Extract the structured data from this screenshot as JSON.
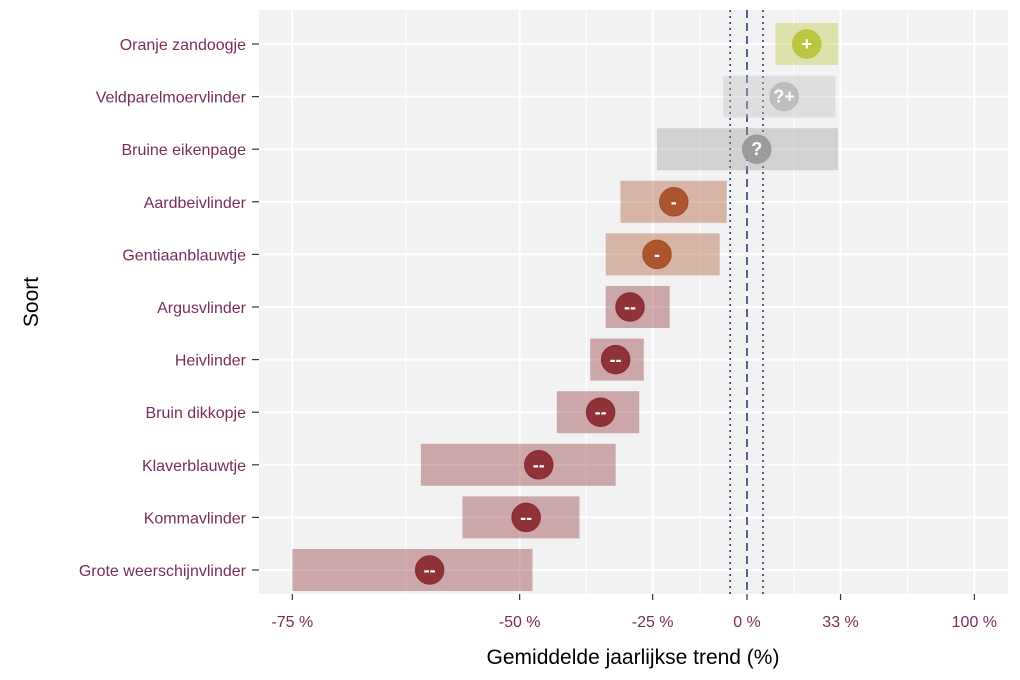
{
  "chart_data": {
    "type": "forest",
    "xlabel": "Gemiddelde jaarlijkse trend (%)",
    "ylabel": "Soort",
    "x_scale": "log-ratio",
    "xticks": [
      {
        "value": -75,
        "label": "-75 %"
      },
      {
        "value": -50,
        "label": "-50 %"
      },
      {
        "value": -25,
        "label": "-25 %"
      },
      {
        "value": 0,
        "label": "0 %"
      },
      {
        "value": 33,
        "label": "33 %"
      },
      {
        "value": 100,
        "label": "100 %"
      }
    ],
    "reference_lines": {
      "dashed": 0,
      "dotted": [
        -5,
        5
      ]
    },
    "grid": true,
    "colors": {
      "panel_bg": "#f2f2f2",
      "grid": "#ffffff",
      "category_text": "#7b2d5a",
      "ref_line": "#1f3f7a",
      "strong_decline": "#8b2c33",
      "moderate_decline": "#a9502a",
      "uncertain": "#9a9a9a",
      "uncertain_light": "#bcbcbc",
      "increase": "#b8c43a"
    },
    "series": [
      {
        "species": "Oranje zandoogje",
        "trend": 20,
        "lower": 9,
        "upper": 32,
        "marker": "+",
        "class": "increase"
      },
      {
        "species": "Veldparelmoervlinder",
        "trend": 12,
        "lower": -7,
        "upper": 31,
        "marker": "?+",
        "class": "uncertain_light"
      },
      {
        "species": "Bruine eikenpage",
        "trend": 3,
        "lower": -24,
        "upper": 32,
        "marker": "?",
        "class": "uncertain"
      },
      {
        "species": "Aardbeivlinder",
        "trend": -20,
        "lower": -32,
        "upper": -6,
        "marker": "-",
        "class": "moderate_decline"
      },
      {
        "species": "Gentiaanblauwtje",
        "trend": -24,
        "lower": -35,
        "upper": -8,
        "marker": "-",
        "class": "moderate_decline"
      },
      {
        "species": "Argusvlinder",
        "trend": -30,
        "lower": -35,
        "upper": -21,
        "marker": "--",
        "class": "strong_decline"
      },
      {
        "species": "Heivlinder",
        "trend": -33,
        "lower": -38,
        "upper": -27,
        "marker": "--",
        "class": "strong_decline"
      },
      {
        "species": "Bruin dikkopje",
        "trend": -36,
        "lower": -44,
        "upper": -28,
        "marker": "--",
        "class": "strong_decline"
      },
      {
        "species": "Klaverblauwtje",
        "trend": -47,
        "lower": -63,
        "upper": -33,
        "marker": "--",
        "class": "strong_decline"
      },
      {
        "species": "Kommavlinder",
        "trend": -49,
        "lower": -58,
        "upper": -40,
        "marker": "--",
        "class": "strong_decline"
      },
      {
        "species": "Grote weerschijnvlinder",
        "trend": -62,
        "lower": -75,
        "upper": -48,
        "marker": "--",
        "class": "strong_decline"
      }
    ]
  }
}
